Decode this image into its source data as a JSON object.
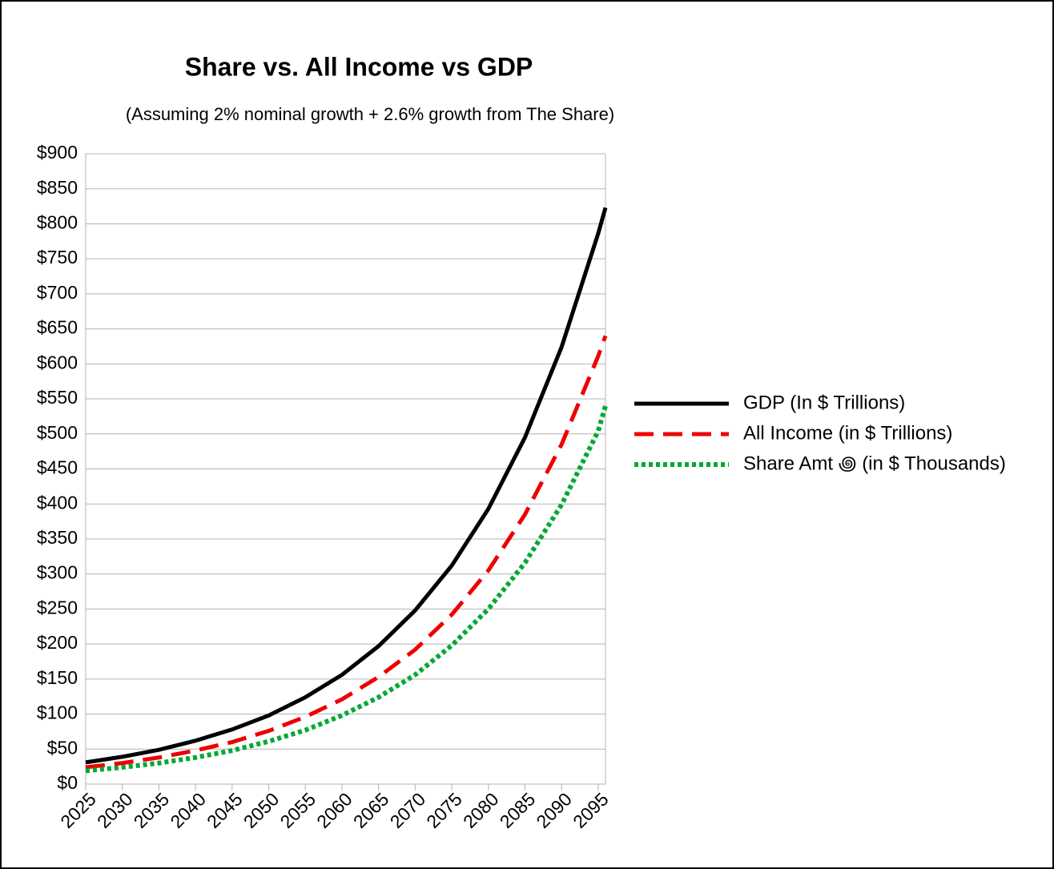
{
  "chart_data": {
    "type": "line",
    "title": "Share vs. All Income vs GDP",
    "subtitle": "(Assuming 2% nominal growth + 2.6% growth from The Share)",
    "x": [
      2025,
      2030,
      2035,
      2040,
      2045,
      2050,
      2055,
      2060,
      2065,
      2070,
      2075,
      2080,
      2085,
      2090,
      2095,
      2096
    ],
    "xlim": [
      2025,
      2096
    ],
    "xticks": [
      2025,
      2030,
      2035,
      2040,
      2045,
      2050,
      2055,
      2060,
      2065,
      2070,
      2075,
      2080,
      2085,
      2090,
      2095
    ],
    "ylim": [
      0,
      900
    ],
    "yticks": [
      {
        "value": 0,
        "label": "$0"
      },
      {
        "value": 50,
        "label": "$50"
      },
      {
        "value": 100,
        "label": "$100"
      },
      {
        "value": 150,
        "label": "$150"
      },
      {
        "value": 200,
        "label": "$200"
      },
      {
        "value": 250,
        "label": "$250"
      },
      {
        "value": 300,
        "label": "$300"
      },
      {
        "value": 350,
        "label": "$350"
      },
      {
        "value": 400,
        "label": "$400"
      },
      {
        "value": 450,
        "label": "$450"
      },
      {
        "value": 500,
        "label": "$500"
      },
      {
        "value": 550,
        "label": "$550"
      },
      {
        "value": 600,
        "label": "$600"
      },
      {
        "value": 650,
        "label": "$650"
      },
      {
        "value": 700,
        "label": "$700"
      },
      {
        "value": 750,
        "label": "$750"
      },
      {
        "value": 800,
        "label": "$800"
      },
      {
        "value": 850,
        "label": "$850"
      },
      {
        "value": 900,
        "label": "$900"
      }
    ],
    "grid": true,
    "legend": "right",
    "series": [
      {
        "name": "GDP (In $ Trillions)",
        "color": "#000000",
        "dash": "solid",
        "values": [
          31,
          39,
          49,
          62,
          78,
          98,
          124,
          156,
          197,
          248,
          312,
          393,
          495,
          624,
          786,
          823
        ]
      },
      {
        "name": "All Income (in $ Trillions)",
        "color": "#ee0000",
        "dash": "dashed",
        "values": [
          24,
          30,
          38,
          48,
          60,
          76,
          96,
          121,
          153,
          192,
          242,
          305,
          385,
          485,
          611,
          640
        ]
      },
      {
        "name": "Share Amt ꩜ (in $ Thousands)",
        "color": "#00a933",
        "dash": "dotted",
        "values": [
          19,
          24,
          30,
          38,
          48,
          61,
          77,
          98,
          124,
          156,
          198,
          250,
          316,
          399,
          504,
          540
        ]
      }
    ]
  }
}
